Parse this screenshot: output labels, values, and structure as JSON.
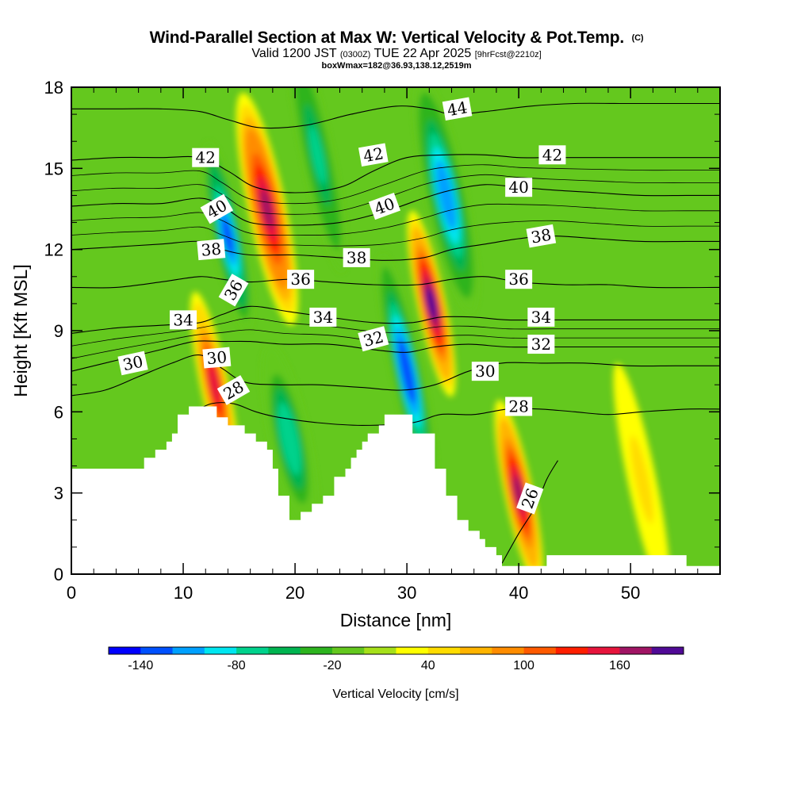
{
  "title": {
    "main": "Wind-Parallel Section at Max W: Vertical Velocity & Pot.Temp.",
    "copyright": "(C)",
    "valid_prefix": "Valid 1200 JST",
    "valid_zulu": "(0300Z)",
    "valid_date": "TUE 22 Apr 2025",
    "forecast": "[9hrFcst@2210z]",
    "box_info": "boxWmax=182@36.93,138.12,2519m"
  },
  "chart_data": {
    "type": "heatmap",
    "xlabel": "Distance [nm]",
    "ylabel": "Height [Kft MSL]",
    "xlim": [
      0,
      58
    ],
    "ylim": [
      0,
      18
    ],
    "x_ticks": [
      0,
      10,
      20,
      30,
      40,
      50
    ],
    "y_ticks": [
      0,
      3,
      6,
      9,
      12,
      15,
      18
    ],
    "x_tick_labels": [
      "0",
      "10",
      "20",
      "30",
      "40",
      "50"
    ],
    "y_tick_labels": [
      "0",
      "3",
      "6",
      "9",
      "12",
      "15",
      "18"
    ],
    "colorbar": {
      "title": "Vertical Velocity [cm/s]",
      "min": -160,
      "max": 200,
      "step": 20,
      "tick_values": [
        -140,
        -80,
        -20,
        40,
        100,
        160
      ],
      "tick_labels": [
        "-140",
        "-80",
        "-20",
        "40",
        "100",
        "160"
      ],
      "colors": [
        "#0000ff",
        "#0050ff",
        "#00a0ff",
        "#00e6f0",
        "#00d28c",
        "#00b450",
        "#2db41e",
        "#64c81e",
        "#a6e01a",
        "#ffff00",
        "#ffdc00",
        "#ffb400",
        "#ff8c00",
        "#ff5a00",
        "#ff1e00",
        "#e6143c",
        "#a01464",
        "#500a96"
      ]
    },
    "terrain_kft": [
      [
        0,
        3.9
      ],
      [
        6.5,
        3.9
      ],
      [
        6.5,
        4.3
      ],
      [
        7.5,
        4.3
      ],
      [
        7.5,
        4.6
      ],
      [
        8.5,
        4.6
      ],
      [
        8.5,
        4.9
      ],
      [
        9,
        4.9
      ],
      [
        9,
        5.2
      ],
      [
        9.5,
        5.2
      ],
      [
        9.5,
        5.9
      ],
      [
        10.5,
        5.9
      ],
      [
        10.5,
        6.2
      ],
      [
        13,
        6.2
      ],
      [
        13,
        5.8
      ],
      [
        14,
        5.8
      ],
      [
        14,
        5.5
      ],
      [
        15.5,
        5.5
      ],
      [
        15.5,
        5.2
      ],
      [
        16.5,
        5.2
      ],
      [
        16.5,
        4.9
      ],
      [
        17.5,
        4.9
      ],
      [
        17.5,
        4.6
      ],
      [
        18,
        4.6
      ],
      [
        18,
        3.9
      ],
      [
        18.5,
        3.9
      ],
      [
        18.5,
        2.9
      ],
      [
        19.5,
        2.9
      ],
      [
        19.5,
        2.0
      ],
      [
        20.5,
        2.0
      ],
      [
        20.5,
        2.3
      ],
      [
        21.5,
        2.3
      ],
      [
        21.5,
        2.6
      ],
      [
        22.5,
        2.6
      ],
      [
        22.5,
        2.9
      ],
      [
        23.5,
        2.9
      ],
      [
        23.5,
        3.6
      ],
      [
        24.5,
        3.6
      ],
      [
        24.5,
        3.9
      ],
      [
        25,
        3.9
      ],
      [
        25,
        4.3
      ],
      [
        25.5,
        4.3
      ],
      [
        25.5,
        4.6
      ],
      [
        26,
        4.6
      ],
      [
        26,
        4.9
      ],
      [
        26.5,
        4.9
      ],
      [
        26.5,
        5.2
      ],
      [
        27.5,
        5.2
      ],
      [
        27.5,
        5.5
      ],
      [
        28,
        5.5
      ],
      [
        28,
        5.9
      ],
      [
        30.5,
        5.9
      ],
      [
        30.5,
        5.2
      ],
      [
        32.5,
        5.2
      ],
      [
        32.5,
        3.9
      ],
      [
        33.5,
        3.9
      ],
      [
        33.5,
        2.9
      ],
      [
        34.5,
        2.9
      ],
      [
        34.5,
        2.0
      ],
      [
        35.5,
        2.0
      ],
      [
        35.5,
        1.6
      ],
      [
        36.5,
        1.6
      ],
      [
        36.5,
        1.3
      ],
      [
        37,
        1.3
      ],
      [
        37,
        1.0
      ],
      [
        38,
        1.0
      ],
      [
        38,
        0.7
      ],
      [
        38.5,
        0.7
      ],
      [
        38.5,
        0.3
      ],
      [
        42.5,
        0.3
      ],
      [
        42.5,
        0.7
      ],
      [
        55,
        0.7
      ],
      [
        55,
        0.3
      ],
      [
        58,
        0.3
      ]
    ],
    "w_field_peaks": [
      {
        "x": 12.8,
        "y": 7.0,
        "w": 140
      },
      {
        "x": 17.5,
        "y": 13.5,
        "w": 170
      },
      {
        "x": 14.0,
        "y": 12.5,
        "w": -130
      },
      {
        "x": 22.0,
        "y": 15.5,
        "w": -70
      },
      {
        "x": 19.5,
        "y": 5.0,
        "w": -80
      },
      {
        "x": 30.0,
        "y": 7.5,
        "w": -140
      },
      {
        "x": 32.2,
        "y": 10.0,
        "w": 182
      },
      {
        "x": 33.5,
        "y": 14.0,
        "w": -120
      },
      {
        "x": 40.0,
        "y": 3.0,
        "w": 160
      },
      {
        "x": 51.0,
        "y": 3.5,
        "w": 40
      }
    ],
    "theta_contours": [
      {
        "label": "26",
        "points": [
          [
            38.5,
            0.4
          ],
          [
            40,
            1.5
          ],
          [
            41.5,
            2.5
          ],
          [
            42.5,
            3.5
          ],
          [
            43.5,
            4.2
          ]
        ]
      },
      {
        "label": "28",
        "points": [
          [
            10.5,
            5.9
          ],
          [
            12.5,
            6.3
          ],
          [
            14.5,
            6.3
          ],
          [
            16.5,
            6.0
          ],
          [
            18.5,
            5.8
          ],
          [
            22,
            5.6
          ],
          [
            26,
            5.5
          ],
          [
            30.5,
            5.6
          ],
          [
            33,
            5.9
          ],
          [
            36,
            5.9
          ],
          [
            39,
            6.1
          ],
          [
            42,
            6.1
          ],
          [
            45,
            6.0
          ],
          [
            48,
            5.9
          ],
          [
            51,
            6.0
          ],
          [
            55,
            6.1
          ],
          [
            58,
            6.1
          ]
        ]
      },
      {
        "label": "30",
        "points": [
          [
            0,
            6.6
          ],
          [
            3,
            6.8
          ],
          [
            6,
            7.3
          ],
          [
            9,
            7.8
          ],
          [
            11.5,
            8.1
          ],
          [
            13.5,
            7.6
          ],
          [
            15.5,
            7.1
          ],
          [
            18.5,
            7.0
          ],
          [
            22,
            7.0
          ],
          [
            26,
            6.9
          ],
          [
            29.5,
            6.8
          ],
          [
            32.5,
            7.0
          ],
          [
            35.5,
            7.5
          ],
          [
            38.5,
            7.8
          ],
          [
            42,
            7.8
          ],
          [
            46,
            7.8
          ],
          [
            50,
            7.7
          ],
          [
            54,
            7.7
          ],
          [
            58,
            7.7
          ]
        ]
      },
      {
        "label": "32",
        "points": [
          [
            0,
            7.5
          ],
          [
            4,
            7.9
          ],
          [
            8,
            8.3
          ],
          [
            11,
            8.6
          ],
          [
            13.5,
            8.6
          ],
          [
            16,
            8.6
          ],
          [
            19,
            8.5
          ],
          [
            23,
            8.5
          ],
          [
            27,
            8.3
          ],
          [
            30,
            8.2
          ],
          [
            32.5,
            8.4
          ],
          [
            35.5,
            8.5
          ],
          [
            39,
            8.4
          ],
          [
            43,
            8.4
          ],
          [
            47,
            8.4
          ],
          [
            51,
            8.4
          ],
          [
            55,
            8.4
          ],
          [
            58,
            8.4
          ]
        ]
      },
      {
        "label": "34",
        "points": [
          [
            0,
            8.9
          ],
          [
            4,
            9.1
          ],
          [
            8,
            9.2
          ],
          [
            11.5,
            9.3
          ],
          [
            13.5,
            9.6
          ],
          [
            16,
            9.9
          ],
          [
            19.5,
            9.7
          ],
          [
            23,
            9.5
          ],
          [
            27,
            9.3
          ],
          [
            30.5,
            9.3
          ],
          [
            33,
            9.5
          ],
          [
            36,
            9.5
          ],
          [
            39,
            9.4
          ],
          [
            43,
            9.4
          ],
          [
            47,
            9.4
          ],
          [
            51,
            9.4
          ],
          [
            55,
            9.4
          ],
          [
            58,
            9.4
          ]
        ]
      },
      {
        "label": "36",
        "points": [
          [
            0,
            10.6
          ],
          [
            4,
            10.6
          ],
          [
            8,
            10.8
          ],
          [
            11.5,
            11.0
          ],
          [
            13.5,
            10.9
          ],
          [
            16,
            10.8
          ],
          [
            19.5,
            10.9
          ],
          [
            23,
            10.8
          ],
          [
            27,
            10.7
          ],
          [
            31,
            10.7
          ],
          [
            34,
            10.9
          ],
          [
            37,
            11.0
          ],
          [
            40,
            10.8
          ],
          [
            44,
            10.7
          ],
          [
            48,
            10.7
          ],
          [
            52,
            10.6
          ],
          [
            58,
            10.6
          ]
        ]
      },
      {
        "label": "38",
        "points": [
          [
            0,
            12.0
          ],
          [
            4,
            12.1
          ],
          [
            8,
            12.2
          ],
          [
            11.5,
            12.3
          ],
          [
            13.5,
            12.0
          ],
          [
            16,
            11.8
          ],
          [
            20,
            11.8
          ],
          [
            24,
            11.7
          ],
          [
            28,
            11.6
          ],
          [
            31.5,
            11.7
          ],
          [
            34,
            12.0
          ],
          [
            37,
            12.2
          ],
          [
            40,
            12.4
          ],
          [
            43,
            12.5
          ],
          [
            47,
            12.4
          ],
          [
            51,
            12.3
          ],
          [
            55,
            12.3
          ],
          [
            58,
            12.3
          ]
        ]
      },
      {
        "label": "40",
        "points": [
          [
            0,
            13.6
          ],
          [
            4,
            13.7
          ],
          [
            8,
            13.7
          ],
          [
            11.5,
            13.9
          ],
          [
            13.5,
            13.6
          ],
          [
            16,
            13.0
          ],
          [
            20,
            12.9
          ],
          [
            24,
            13.0
          ],
          [
            28,
            13.4
          ],
          [
            31.5,
            13.9
          ],
          [
            34,
            14.2
          ],
          [
            37,
            14.4
          ],
          [
            40,
            14.3
          ],
          [
            43,
            14.2
          ],
          [
            47,
            14.1
          ],
          [
            51,
            14.0
          ],
          [
            55,
            14.0
          ],
          [
            58,
            14.0
          ]
        ]
      },
      {
        "label": "42",
        "points": [
          [
            0,
            15.3
          ],
          [
            4,
            15.4
          ],
          [
            8,
            15.4
          ],
          [
            11.5,
            15.4
          ],
          [
            14,
            14.9
          ],
          [
            16.5,
            14.3
          ],
          [
            20,
            14.1
          ],
          [
            24,
            14.3
          ],
          [
            27,
            14.9
          ],
          [
            30,
            15.4
          ],
          [
            33.5,
            15.5
          ],
          [
            37,
            15.5
          ],
          [
            40,
            15.4
          ],
          [
            43,
            15.4
          ],
          [
            47,
            15.4
          ],
          [
            51,
            15.4
          ],
          [
            55,
            15.4
          ],
          [
            58,
            15.4
          ]
        ]
      },
      {
        "label": "44",
        "points": [
          [
            0,
            17.2
          ],
          [
            4,
            17.2
          ],
          [
            8,
            17.2
          ],
          [
            11.5,
            17.1
          ],
          [
            14,
            16.8
          ],
          [
            17,
            16.5
          ],
          [
            21,
            16.6
          ],
          [
            25,
            17.0
          ],
          [
            29,
            17.3
          ],
          [
            32,
            17.2
          ],
          [
            34,
            17.0
          ],
          [
            37,
            17.1
          ],
          [
            41,
            17.3
          ],
          [
            45,
            17.4
          ],
          [
            49,
            17.4
          ],
          [
            53,
            17.4
          ],
          [
            58,
            17.4
          ]
        ]
      }
    ]
  }
}
